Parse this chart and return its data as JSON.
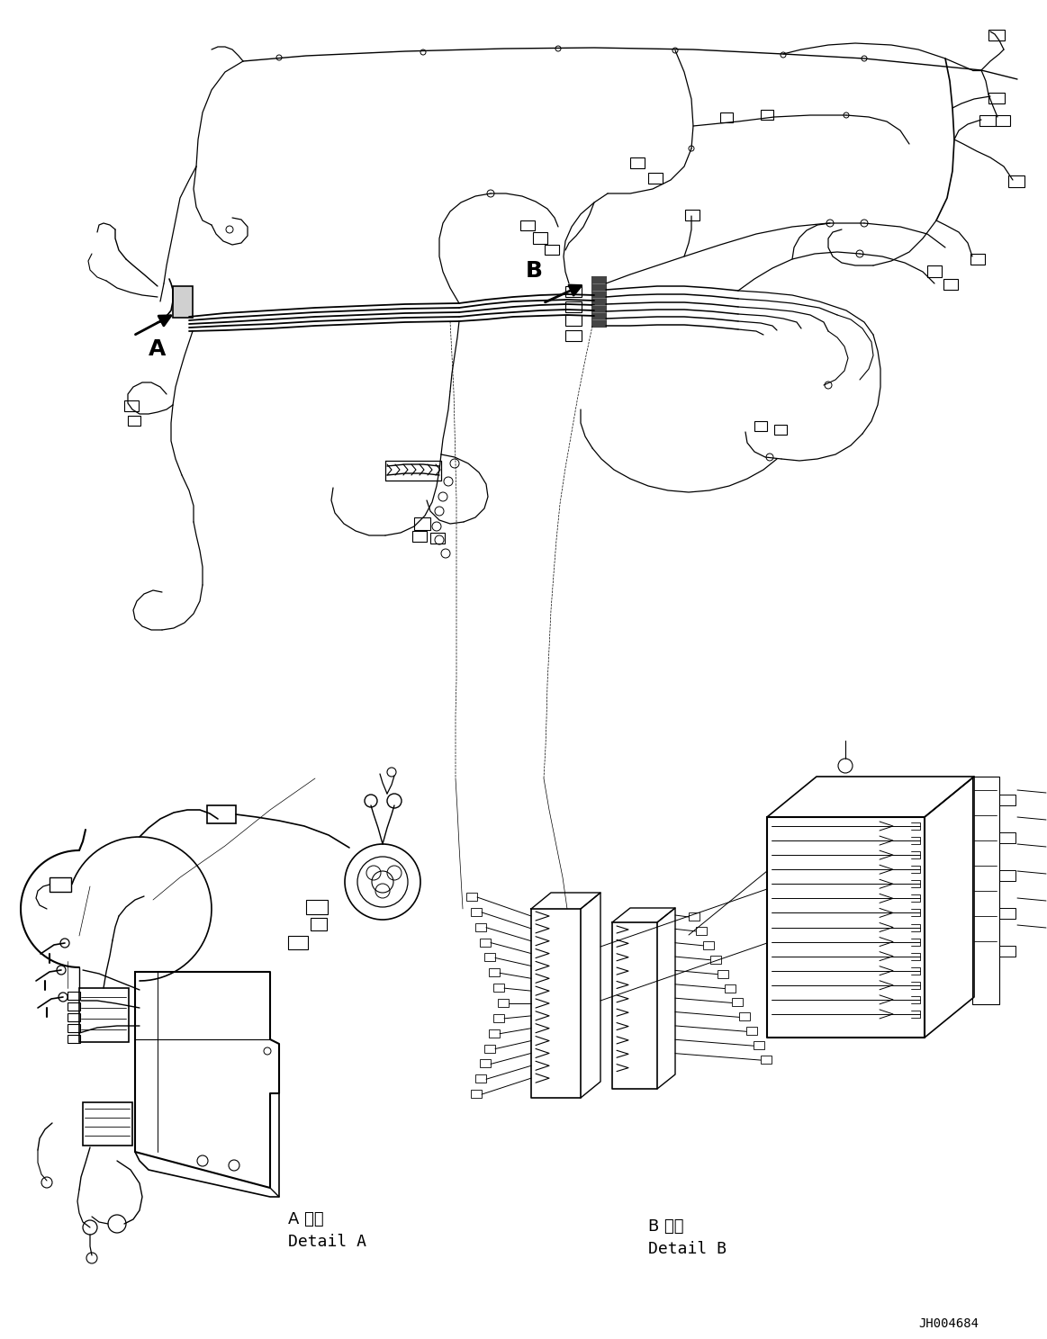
{
  "background_color": "#ffffff",
  "line_color": "#000000",
  "figure_width": 11.63,
  "figure_height": 14.88,
  "dpi": 100,
  "label_A": "A",
  "label_B": "B",
  "detail_A_jp": "A 詳細",
  "detail_A_en": "Detail A",
  "detail_B_jp": "B 詳細",
  "detail_B_en": "Detail B",
  "drawing_number": "JH004684",
  "font_size_labels": 18,
  "font_size_detail": 13,
  "font_size_drawing": 10
}
